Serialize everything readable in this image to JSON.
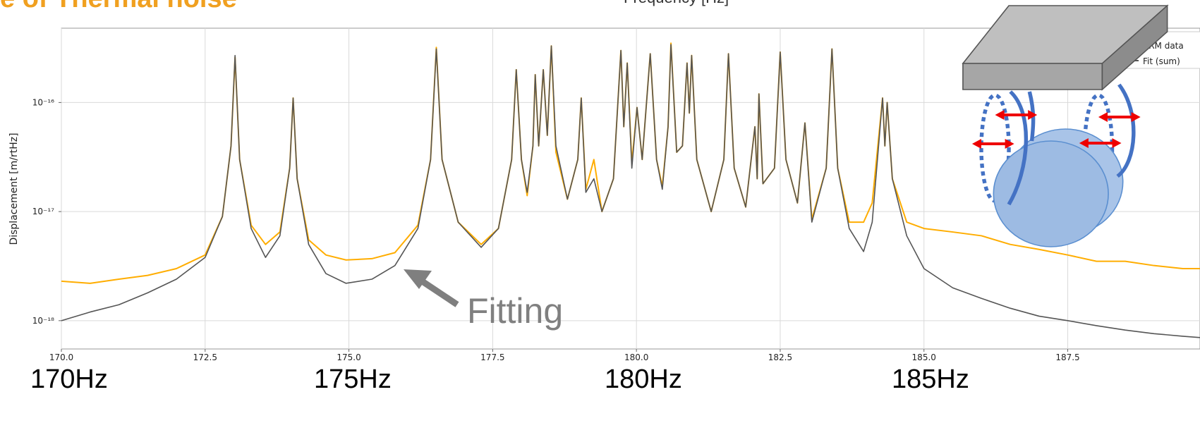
{
  "title": "e of Thermal noise",
  "annotations": [
    "170Hz",
    "175Hz",
    "180Hz",
    "185Hz",
    "Fitting"
  ],
  "chart_data": {
    "type": "line",
    "xlabel": "Frequency [Hz]",
    "ylabel": "Displacement [m/rtHz]",
    "log_y": true,
    "grid": true,
    "legend": "upper right",
    "xlim": [
      170,
      189.8
    ],
    "ylim": [
      5.5e-19,
      4.8e-16
    ],
    "xticks": [
      {
        "value": 170,
        "label": "170.0"
      },
      {
        "value": 172.5,
        "label": "172.5"
      },
      {
        "value": 175,
        "label": "175.0"
      },
      {
        "value": 177.5,
        "label": "177.5"
      },
      {
        "value": 180,
        "label": "180.0"
      },
      {
        "value": 182.5,
        "label": "182.5"
      },
      {
        "value": 185,
        "label": "185.0"
      },
      {
        "value": 187.5,
        "label": "187.5"
      }
    ],
    "yticks": [
      {
        "value": 1e-18,
        "label": "10⁻¹⁸"
      },
      {
        "value": 1e-17,
        "label": "10⁻¹⁷"
      },
      {
        "value": 1e-16,
        "label": "10⁻¹⁶"
      }
    ],
    "x": [
      170.0,
      170.5,
      171.0,
      171.5,
      172.0,
      172.5,
      172.8,
      172.95,
      173.02,
      173.1,
      173.3,
      173.55,
      173.8,
      173.97,
      174.03,
      174.1,
      174.3,
      174.6,
      174.95,
      175.4,
      175.8,
      176.2,
      176.42,
      176.52,
      176.62,
      176.9,
      177.3,
      177.6,
      177.83,
      177.91,
      178.0,
      178.1,
      178.2,
      178.24,
      178.3,
      178.38,
      178.45,
      178.52,
      178.6,
      178.8,
      178.98,
      179.04,
      179.12,
      179.26,
      179.4,
      179.6,
      179.73,
      179.78,
      179.84,
      179.92,
      180.01,
      180.1,
      180.24,
      180.35,
      180.45,
      180.55,
      180.6,
      180.7,
      180.8,
      180.88,
      180.92,
      180.96,
      181.05,
      181.3,
      181.52,
      181.6,
      181.7,
      181.9,
      182.06,
      182.1,
      182.13,
      182.2,
      182.4,
      182.5,
      182.6,
      182.8,
      182.93,
      183.05,
      183.3,
      183.4,
      183.5,
      183.7,
      183.95,
      184.1,
      184.28,
      184.32,
      184.36,
      184.45,
      184.7,
      185.0,
      185.5,
      186.0,
      186.5,
      187.0,
      187.5,
      188.0,
      188.5,
      189.0,
      189.5,
      189.8
    ],
    "series": [
      {
        "name": "ARM data",
        "color": "#ffad00",
        "values": [
          2.3e-18,
          2.2e-18,
          2.4e-18,
          2.6e-18,
          3e-18,
          4e-18,
          9e-18,
          4e-17,
          2.6e-16,
          3e-17,
          7.5e-18,
          5e-18,
          6.5e-18,
          2.5e-17,
          1.1e-16,
          2e-17,
          5.5e-18,
          4e-18,
          3.6e-18,
          3.7e-18,
          4.2e-18,
          7.5e-18,
          3e-17,
          3.2e-16,
          3e-17,
          8e-18,
          5e-18,
          7e-18,
          3e-17,
          2e-16,
          3e-17,
          1.4e-17,
          4e-17,
          1.8e-16,
          4e-17,
          2e-16,
          5e-17,
          3.3e-16,
          3.5e-17,
          1.3e-17,
          3e-17,
          1.1e-16,
          1.6e-17,
          3e-17,
          1e-17,
          2e-17,
          3e-16,
          6e-17,
          2.3e-16,
          2.8e-17,
          9e-17,
          3e-17,
          2.8e-16,
          3e-17,
          1.7e-17,
          6e-17,
          3.5e-16,
          3.5e-17,
          4e-17,
          2.3e-16,
          8e-17,
          2.7e-16,
          3e-17,
          1e-17,
          3e-17,
          2.8e-16,
          2.5e-17,
          1.1e-17,
          6e-17,
          2e-17,
          1.2e-16,
          1.8e-17,
          2.5e-17,
          2.9e-16,
          3e-17,
          1.2e-17,
          6.5e-17,
          8.5e-18,
          2.5e-17,
          3.1e-16,
          2.5e-17,
          8e-18,
          8e-18,
          1.2e-17,
          1.1e-16,
          4e-17,
          1e-16,
          2e-17,
          8e-18,
          7e-18,
          6.5e-18,
          6e-18,
          5e-18,
          4.5e-18,
          4e-18,
          3.5e-18,
          3.5e-18,
          3.2e-18,
          3e-18,
          3e-18
        ]
      },
      {
        "name": "Fit (sum)",
        "color": "#555555",
        "values": [
          1e-18,
          1.2e-18,
          1.4e-18,
          1.8e-18,
          2.4e-18,
          3.8e-18,
          9e-18,
          4e-17,
          2.7e-16,
          3e-17,
          7e-18,
          3.8e-18,
          6e-18,
          2.5e-17,
          1.1e-16,
          2e-17,
          5e-18,
          2.7e-18,
          2.2e-18,
          2.4e-18,
          3.2e-18,
          7e-18,
          3e-17,
          3.1e-16,
          3e-17,
          8e-18,
          4.7e-18,
          7e-18,
          3e-17,
          2e-16,
          3e-17,
          1.5e-17,
          4e-17,
          1.8e-16,
          4e-17,
          2e-16,
          5e-17,
          3.3e-16,
          4e-17,
          1.3e-17,
          3e-17,
          1.1e-16,
          1.5e-17,
          2e-17,
          1e-17,
          2e-17,
          3e-16,
          6e-17,
          2.3e-16,
          2.5e-17,
          9e-17,
          3e-17,
          2.8e-16,
          3e-17,
          1.6e-17,
          6e-17,
          3.4e-16,
          3.5e-17,
          4e-17,
          2.3e-16,
          8e-17,
          2.7e-16,
          3e-17,
          1e-17,
          3e-17,
          2.8e-16,
          2.5e-17,
          1.1e-17,
          6e-17,
          2e-17,
          1.2e-16,
          1.8e-17,
          2.5e-17,
          2.9e-16,
          3e-17,
          1.2e-17,
          6.5e-17,
          8e-18,
          2.5e-17,
          3.1e-16,
          2.5e-17,
          7e-18,
          4.3e-18,
          8e-18,
          1.1e-16,
          4e-17,
          1e-16,
          2e-17,
          6e-18,
          3e-18,
          2e-18,
          1.6e-18,
          1.3e-18,
          1.1e-18,
          1e-18,
          9e-19,
          8.2e-19,
          7.6e-19,
          7.2e-19,
          7e-19
        ]
      }
    ]
  }
}
